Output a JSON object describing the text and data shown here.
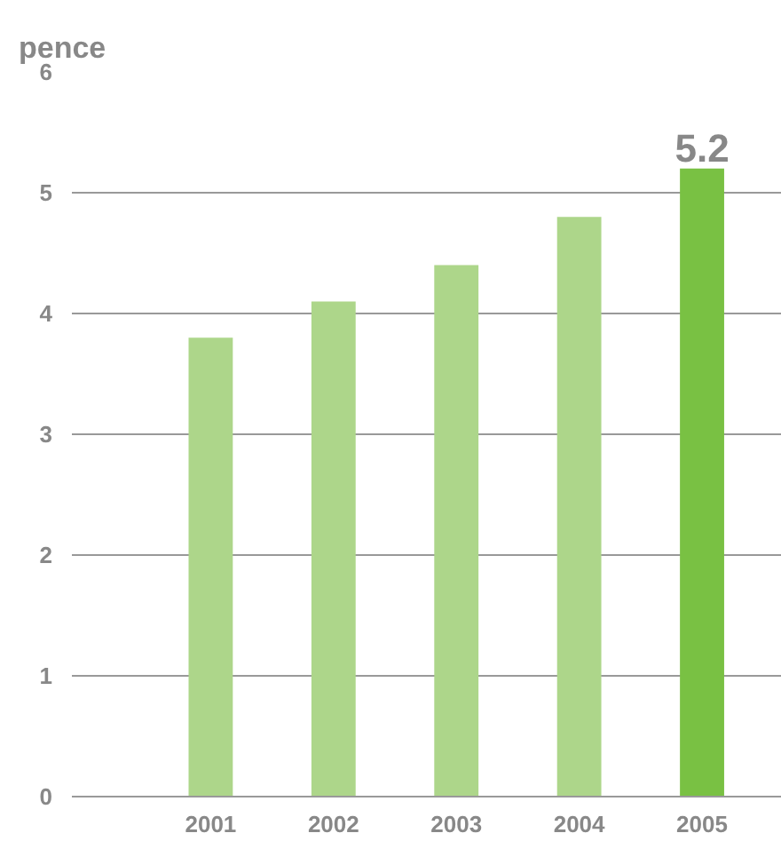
{
  "chart_data": {
    "type": "bar",
    "ylabel": "pence",
    "categories": [
      "2001",
      "2002",
      "2003",
      "2004",
      "2005"
    ],
    "values": [
      3.8,
      4.1,
      4.4,
      4.8,
      5.2
    ],
    "colors": [
      "#add68a",
      "#add68a",
      "#add68a",
      "#add68a",
      "#79c143"
    ],
    "value_labels": [
      null,
      null,
      null,
      null,
      "5.2"
    ],
    "ylim": [
      0,
      6
    ],
    "yticks": [
      0,
      1,
      2,
      3,
      4,
      5,
      6
    ],
    "grid": "y"
  }
}
